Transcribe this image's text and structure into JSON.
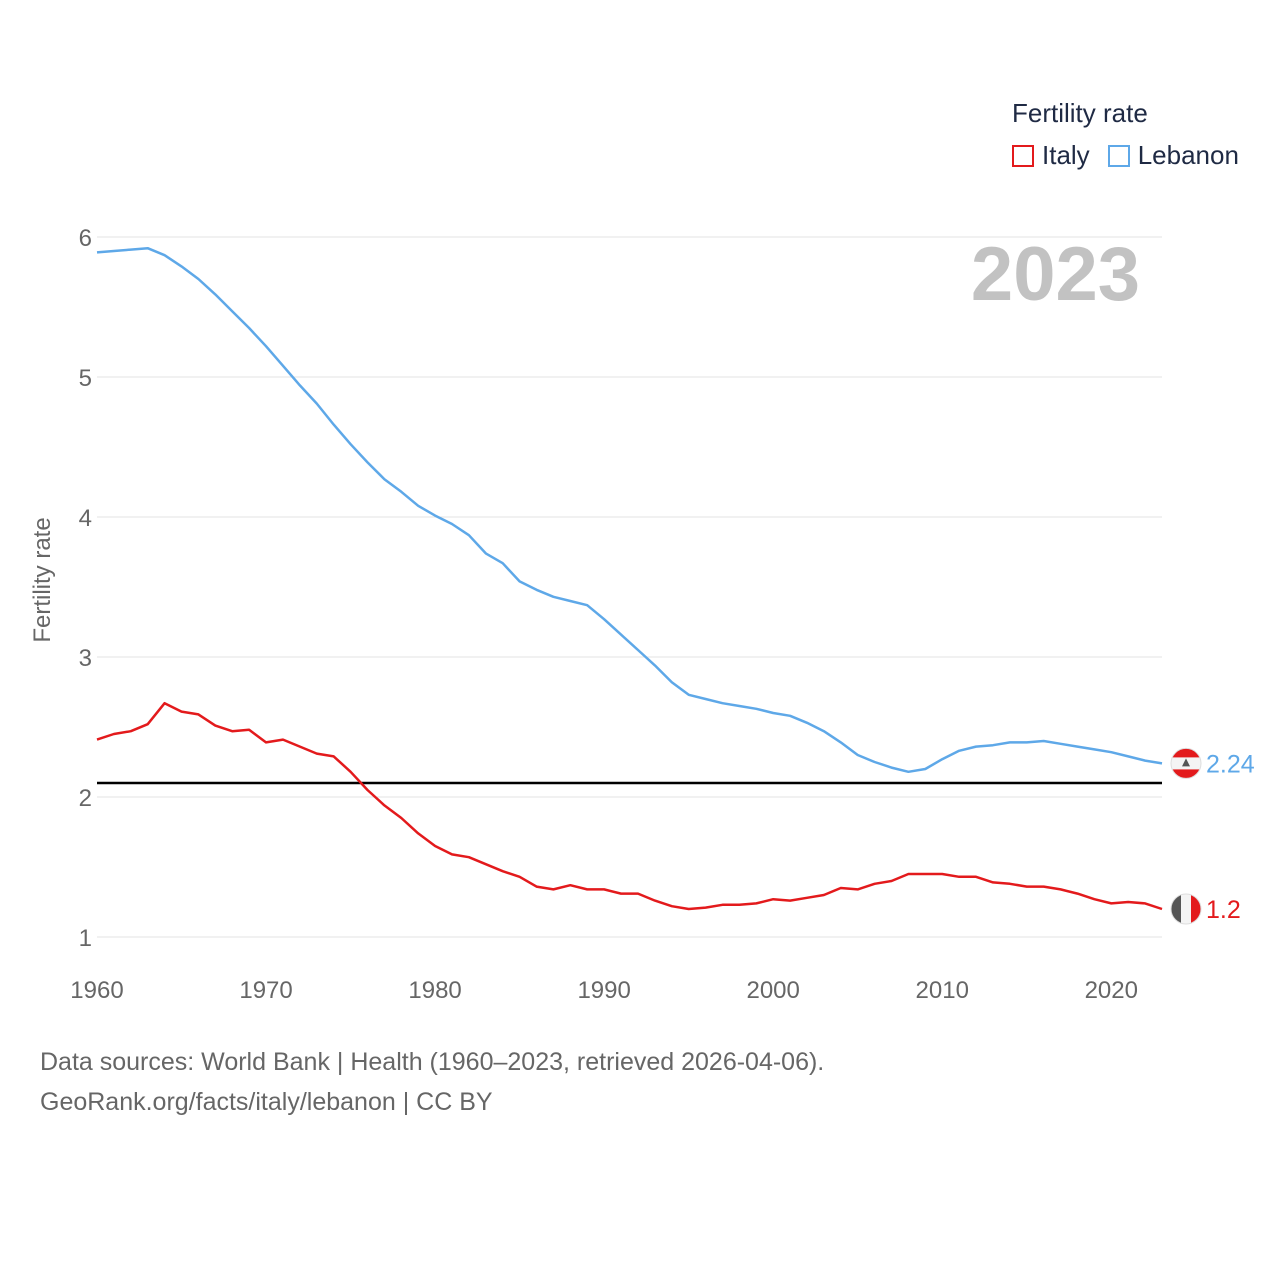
{
  "chart_data": {
    "type": "line",
    "title": "2023",
    "xlabel": "",
    "ylabel": "Fertility rate",
    "xlim": [
      1960,
      2023
    ],
    "ylim": [
      1,
      6
    ],
    "x_ticks": [
      1960,
      1970,
      1980,
      1990,
      2000,
      2010,
      2020
    ],
    "y_ticks": [
      1,
      2,
      3,
      4,
      5,
      6
    ],
    "reference_line": 2.1,
    "legend_title": "Fertility rate",
    "legend_position": "top-right",
    "x": [
      1960,
      1961,
      1962,
      1963,
      1964,
      1965,
      1966,
      1967,
      1968,
      1969,
      1970,
      1971,
      1972,
      1973,
      1974,
      1975,
      1976,
      1977,
      1978,
      1979,
      1980,
      1981,
      1982,
      1983,
      1984,
      1985,
      1986,
      1987,
      1988,
      1989,
      1990,
      1991,
      1992,
      1993,
      1994,
      1995,
      1996,
      1997,
      1998,
      1999,
      2000,
      2001,
      2002,
      2003,
      2004,
      2005,
      2006,
      2007,
      2008,
      2009,
      2010,
      2011,
      2012,
      2013,
      2014,
      2015,
      2016,
      2017,
      2018,
      2019,
      2020,
      2021,
      2022,
      2023
    ],
    "series": [
      {
        "name": "Italy",
        "color": "#e31a1c",
        "end_label": "1.2",
        "values": [
          2.41,
          2.45,
          2.47,
          2.52,
          2.67,
          2.61,
          2.59,
          2.51,
          2.47,
          2.48,
          2.39,
          2.41,
          2.36,
          2.31,
          2.29,
          2.18,
          2.05,
          1.94,
          1.85,
          1.74,
          1.65,
          1.59,
          1.57,
          1.52,
          1.47,
          1.43,
          1.36,
          1.34,
          1.37,
          1.34,
          1.34,
          1.31,
          1.31,
          1.26,
          1.22,
          1.2,
          1.21,
          1.23,
          1.23,
          1.24,
          1.27,
          1.26,
          1.28,
          1.3,
          1.35,
          1.34,
          1.38,
          1.4,
          1.45,
          1.45,
          1.45,
          1.43,
          1.43,
          1.39,
          1.38,
          1.36,
          1.36,
          1.34,
          1.31,
          1.27,
          1.24,
          1.25,
          1.24,
          1.2
        ]
      },
      {
        "name": "Lebanon",
        "color": "#5ea8e8",
        "end_label": "2.24",
        "values": [
          5.89,
          5.9,
          5.91,
          5.92,
          5.87,
          5.79,
          5.7,
          5.59,
          5.47,
          5.35,
          5.22,
          5.08,
          4.94,
          4.81,
          4.66,
          4.52,
          4.39,
          4.27,
          4.18,
          4.08,
          4.01,
          3.95,
          3.87,
          3.74,
          3.67,
          3.54,
          3.48,
          3.43,
          3.4,
          3.37,
          3.27,
          3.16,
          3.05,
          2.94,
          2.82,
          2.73,
          2.7,
          2.67,
          2.65,
          2.63,
          2.6,
          2.58,
          2.53,
          2.47,
          2.39,
          2.3,
          2.25,
          2.21,
          2.18,
          2.2,
          2.27,
          2.33,
          2.36,
          2.37,
          2.39,
          2.39,
          2.4,
          2.38,
          2.36,
          2.34,
          2.32,
          2.29,
          2.26,
          2.24
        ]
      }
    ]
  },
  "footer": {
    "sources": "Data sources: World Bank | Health (1960–2023, retrieved 2026-04-06).",
    "link": "GeoRank.org/facts/italy/lebanon | CC BY"
  }
}
